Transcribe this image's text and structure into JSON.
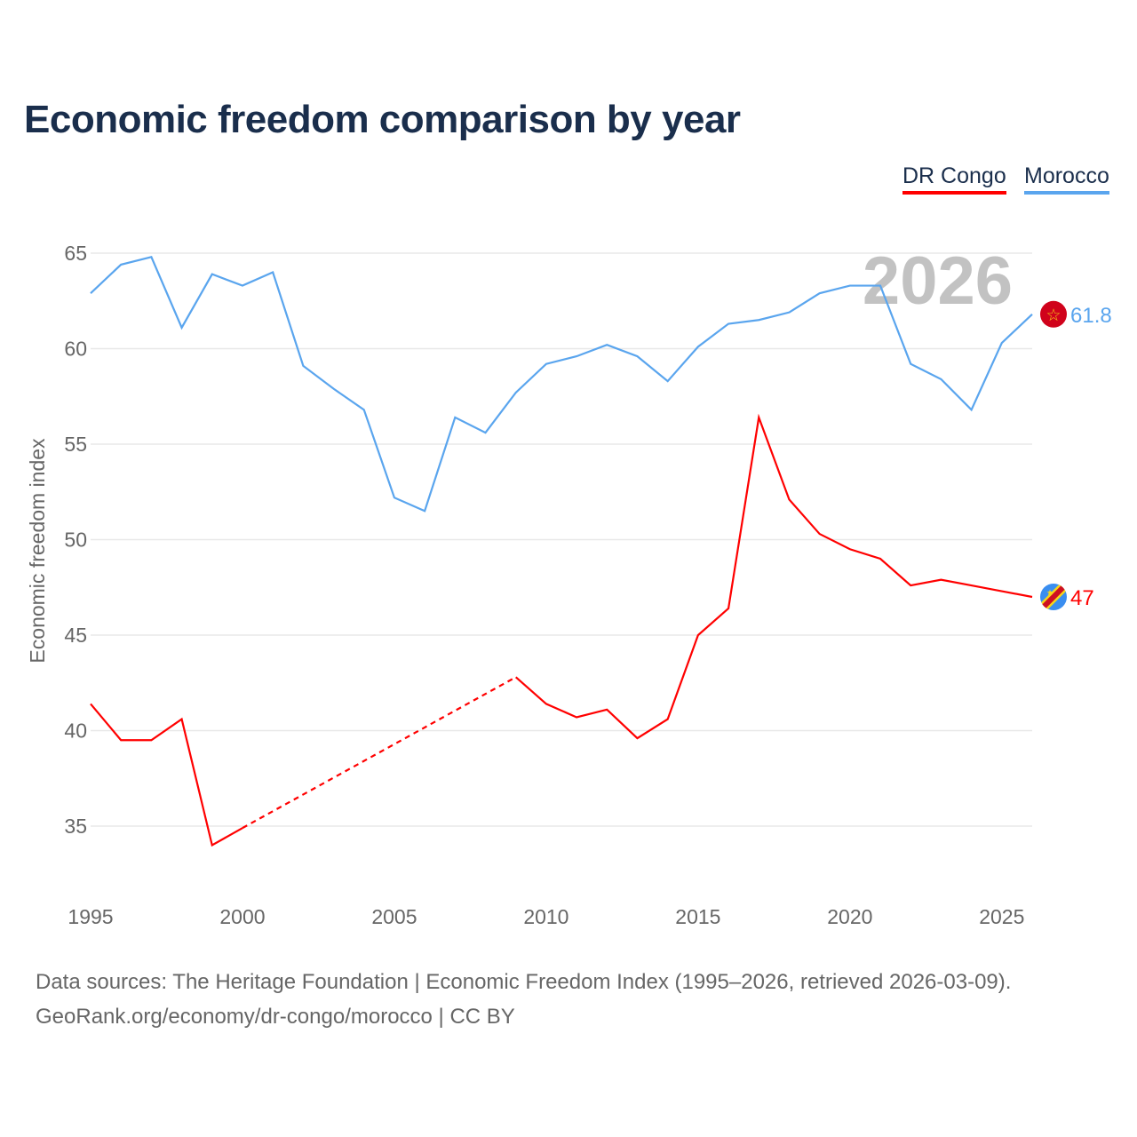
{
  "title": "Economic freedom comparison by year",
  "legend": [
    "DR Congo",
    "Morocco"
  ],
  "footer": {
    "line1": "Data sources: The Heritage Foundation | Economic Freedom Index (1995–2026, retrieved 2026-03-09).",
    "line2": "GeoRank.org/economy/dr-congo/morocco | CC BY"
  },
  "chart_data": {
    "type": "line",
    "title": "Economic freedom comparison by year",
    "ylabel": "Economic freedom index",
    "xlabel": "",
    "watermark_year": "2026",
    "x": [
      1995,
      1996,
      1997,
      1998,
      1999,
      2000,
      2001,
      2002,
      2003,
      2004,
      2005,
      2006,
      2007,
      2008,
      2009,
      2010,
      2011,
      2012,
      2013,
      2014,
      2015,
      2016,
      2017,
      2018,
      2019,
      2020,
      2021,
      2022,
      2023,
      2024,
      2025,
      2026
    ],
    "xticks": [
      "1995",
      "2000",
      "2005",
      "2010",
      "2015",
      "2020",
      "2025"
    ],
    "yticks": [
      "35",
      "40",
      "45",
      "50",
      "55",
      "60",
      "65"
    ],
    "xlim": [
      1995,
      2026
    ],
    "ylim": [
      35,
      65
    ],
    "series": [
      {
        "name": "Morocco",
        "color": "#5aa5ee",
        "end_label": "61.8",
        "flag": "morocco-flag",
        "values": [
          62.9,
          64.4,
          64.8,
          61.1,
          63.9,
          63.3,
          64.0,
          59.1,
          57.9,
          56.8,
          52.2,
          51.5,
          56.4,
          55.6,
          57.7,
          59.2,
          59.6,
          60.2,
          59.6,
          58.3,
          60.1,
          61.3,
          61.5,
          61.9,
          62.9,
          63.3,
          63.3,
          59.2,
          58.4,
          56.8,
          60.3,
          61.8
        ]
      },
      {
        "name": "DR Congo",
        "color": "#ff0000",
        "end_label": "47",
        "flag": "dr-congo-flag",
        "values": [
          41.4,
          39.5,
          39.5,
          40.6,
          34.0,
          34.9,
          null,
          null,
          null,
          null,
          null,
          null,
          null,
          null,
          42.8,
          41.4,
          40.7,
          41.1,
          39.6,
          40.6,
          45.0,
          46.4,
          56.4,
          52.1,
          50.3,
          49.5,
          49.0,
          47.6,
          47.9,
          47.6,
          47.3,
          47.0
        ]
      }
    ]
  }
}
